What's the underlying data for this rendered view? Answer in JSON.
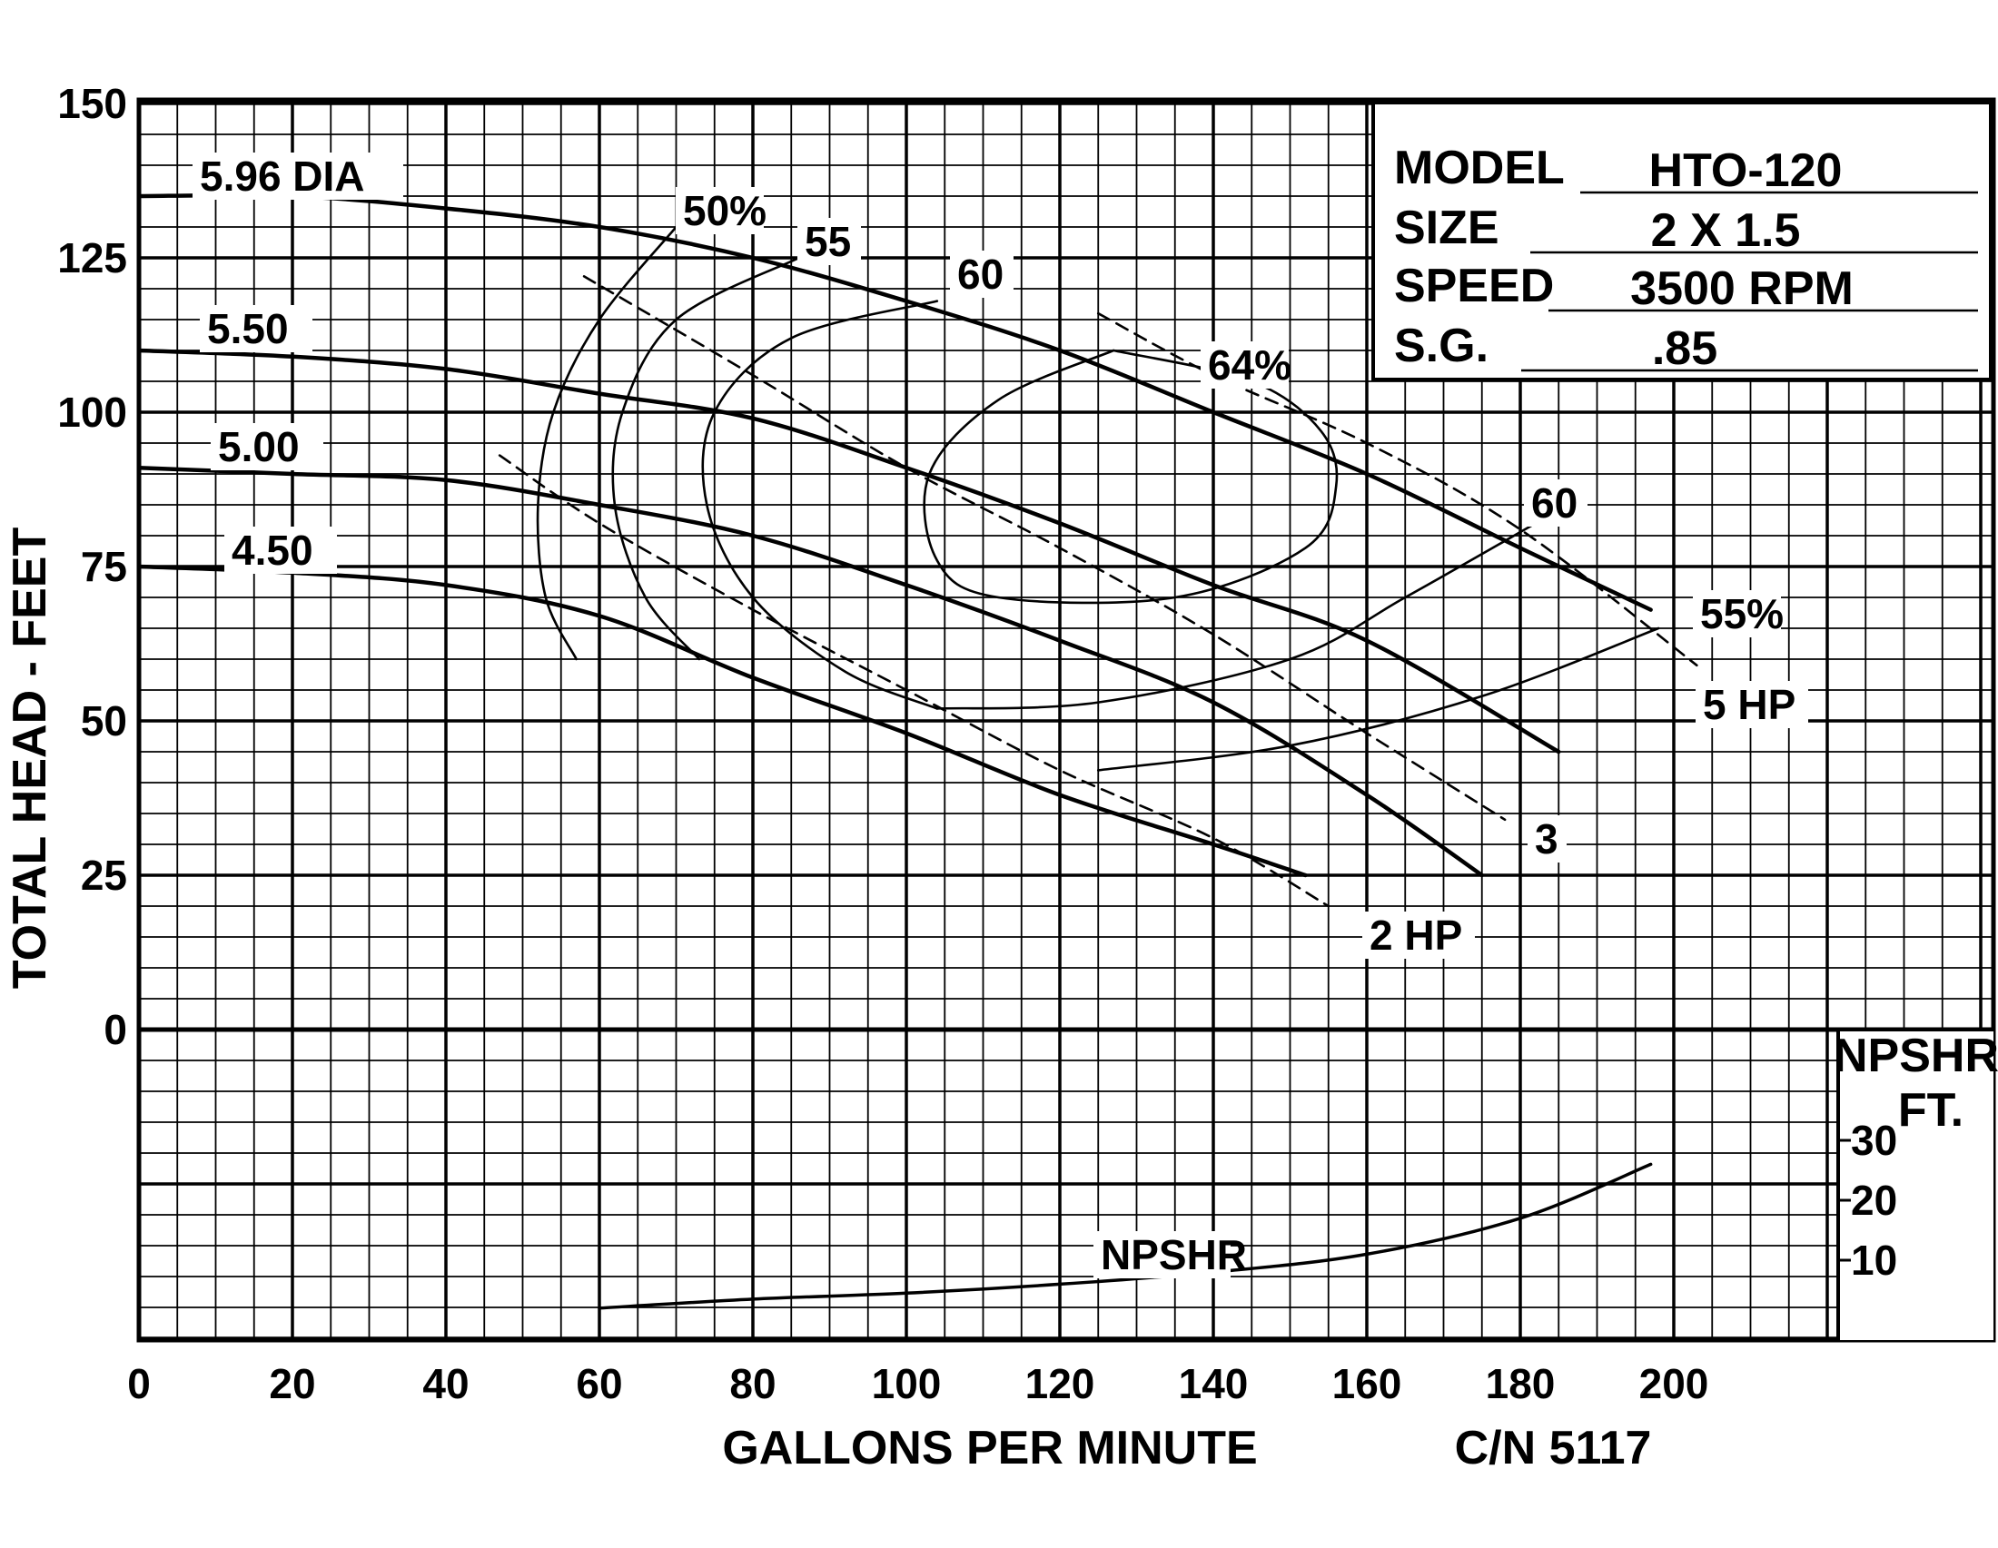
{
  "chart_data": {
    "type": "line",
    "title": "",
    "xlabel": "GALLONS PER MINUTE",
    "ylabel": "TOTAL HEAD - FEET",
    "xlim": [
      0,
      240
    ],
    "ylim": [
      -50,
      150
    ],
    "x_ticks": [
      "0",
      "20",
      "40",
      "60",
      "80",
      "100",
      "120",
      "140",
      "160",
      "180",
      "200"
    ],
    "x_tick_values": [
      0,
      20,
      40,
      60,
      80,
      100,
      120,
      140,
      160,
      180,
      200
    ],
    "y_ticks": [
      "0",
      "25",
      "50",
      "75",
      "100",
      "125",
      "150"
    ],
    "y_tick_values": [
      0,
      25,
      50,
      75,
      100,
      125,
      150
    ],
    "grid": true,
    "catalog_number": "C/N 5117",
    "info_box": {
      "rows": [
        {
          "label": "MODEL",
          "value": "HTO-120"
        },
        {
          "label": "SIZE",
          "value": "2 X 1.5"
        },
        {
          "label": "SPEED",
          "value": "3500 RPM"
        },
        {
          "label": "S.G.",
          "value": ".85"
        }
      ]
    },
    "series": [
      {
        "name": "5.96 DIA",
        "kind": "impeller",
        "x": [
          0,
          20,
          40,
          60,
          80,
          100,
          120,
          140,
          160,
          180,
          197
        ],
        "y": [
          135,
          135,
          133,
          130,
          125,
          118,
          110,
          100,
          90,
          78,
          68
        ]
      },
      {
        "name": "5.50",
        "kind": "impeller",
        "x": [
          0,
          20,
          40,
          60,
          80,
          100,
          120,
          140,
          160,
          185
        ],
        "y": [
          110,
          109,
          107,
          103,
          99,
          91,
          82,
          72,
          63,
          45
        ]
      },
      {
        "name": "5.00",
        "kind": "impeller",
        "x": [
          0,
          20,
          40,
          60,
          80,
          100,
          120,
          140,
          160,
          175
        ],
        "y": [
          91,
          90,
          89,
          85,
          80,
          72,
          63,
          53,
          38,
          25
        ]
      },
      {
        "name": "4.50",
        "kind": "impeller",
        "x": [
          0,
          20,
          40,
          60,
          80,
          100,
          120,
          140,
          152
        ],
        "y": [
          75,
          74,
          72,
          67,
          57,
          48,
          38,
          30,
          25
        ]
      },
      {
        "name": "50%",
        "kind": "efficiency",
        "x": [
          57,
          53,
          52,
          54,
          60,
          70
        ],
        "y": [
          60,
          70,
          85,
          100,
          115,
          130
        ]
      },
      {
        "name": "55",
        "kind": "efficiency",
        "x": [
          73,
          66,
          62,
          63,
          70,
          86
        ],
        "y": [
          60,
          70,
          85,
          100,
          115,
          125
        ]
      },
      {
        "name": "55%",
        "kind": "efficiency",
        "x": [
          125,
          150,
          175,
          198
        ],
        "y": [
          42,
          46,
          54,
          65
        ]
      },
      {
        "name": "60",
        "kind": "efficiency",
        "x": [
          104,
          85,
          75,
          74,
          80,
          92,
          104
        ],
        "y": [
          118,
          112,
          100,
          85,
          70,
          58,
          52
        ]
      },
      {
        "name": "60",
        "kind": "efficiency",
        "x": [
          104,
          125,
          150,
          165,
          182
        ],
        "y": [
          52,
          53,
          60,
          70,
          82
        ]
      },
      {
        "name": "64%",
        "kind": "efficiency",
        "x": [
          127,
          112,
          103,
          104,
          112,
          135,
          152,
          156,
          154,
          145,
          127
        ],
        "y": [
          110,
          102,
          90,
          76,
          70,
          70,
          78,
          88,
          97,
          105,
          110
        ]
      },
      {
        "name": "2 HP",
        "kind": "horsepower",
        "x": [
          47,
          60,
          80,
          100,
          120,
          140,
          155
        ],
        "y": [
          93,
          82,
          68,
          55,
          42,
          31,
          20
        ]
      },
      {
        "name": "3",
        "kind": "horsepower",
        "x": [
          58,
          80,
          100,
          120,
          140,
          160,
          178
        ],
        "y": [
          122,
          106,
          91,
          78,
          64,
          48,
          34
        ]
      },
      {
        "name": "5 HP",
        "kind": "horsepower",
        "x": [
          125,
          140,
          160,
          180,
          203
        ],
        "y": [
          116,
          106,
          95,
          81,
          59
        ]
      },
      {
        "name": "NPSHR",
        "kind": "npshr",
        "x": [
          60,
          80,
          100,
          120,
          140,
          160,
          180,
          197
        ],
        "y": [
          2,
          3.5,
          4.5,
          6,
          8,
          11,
          17,
          26
        ]
      }
    ],
    "npshr_axis": {
      "title_line1": "NPSHR",
      "title_line2": "FT.",
      "ticks": [
        "10",
        "20",
        "30"
      ],
      "tick_values": [
        10,
        20,
        30
      ]
    }
  }
}
